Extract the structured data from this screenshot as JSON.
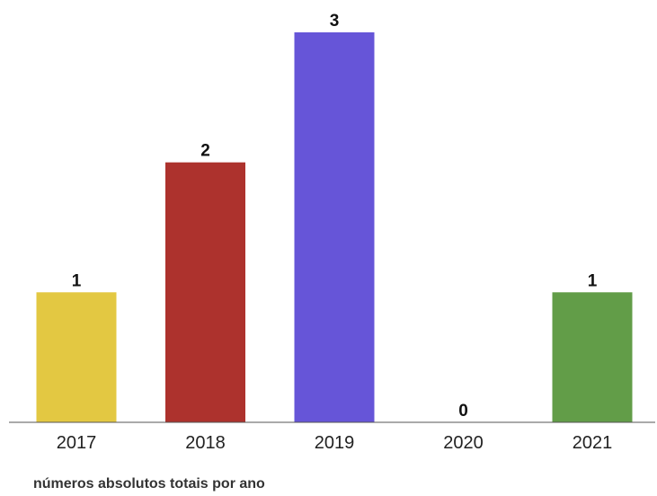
{
  "caption": "números absolutos totais por ano",
  "chart_data": {
    "type": "bar",
    "categories": [
      "2017",
      "2018",
      "2019",
      "2020",
      "2021"
    ],
    "values": [
      1,
      2,
      3,
      0,
      1
    ],
    "colors": [
      "#e3c842",
      "#ad322d",
      "#6655d8",
      "#6655d8",
      "#629d48"
    ],
    "ylim": [
      0,
      3
    ],
    "data_labels": true,
    "grid": false,
    "legend": "none"
  }
}
